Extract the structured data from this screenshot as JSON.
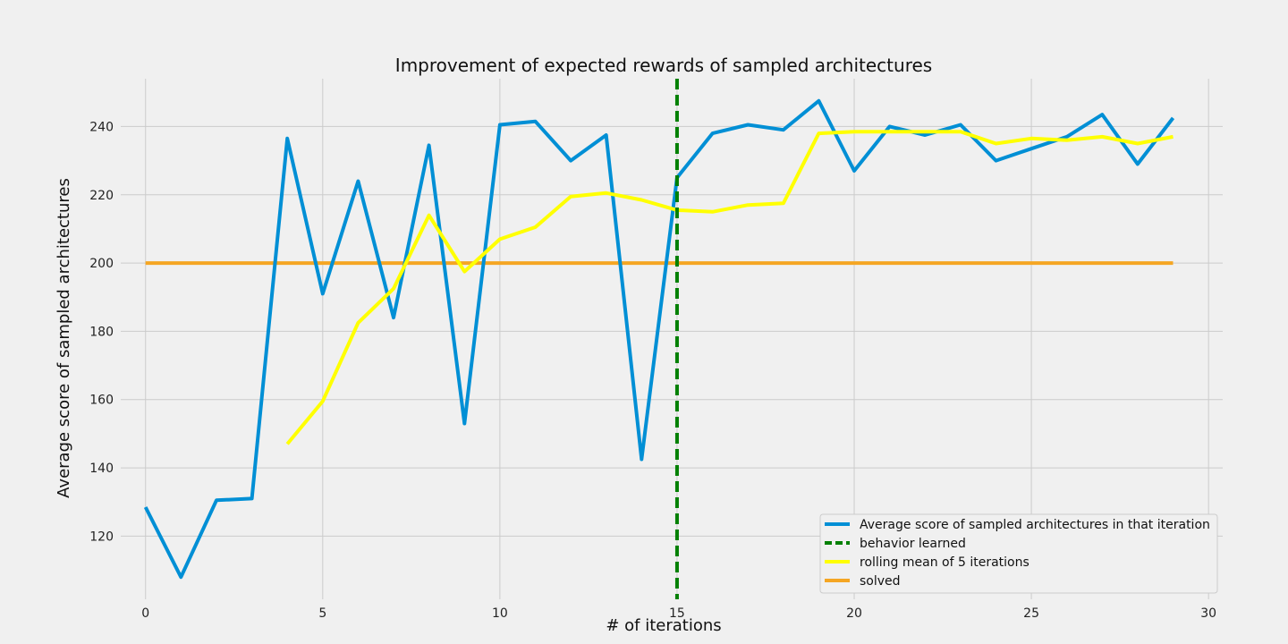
{
  "chart_data": {
    "type": "line",
    "title": "Improvement of expected rewards of sampled architectures",
    "xlabel": "# of iterations",
    "ylabel": "Average score of sampled architectures",
    "xlim": [
      -0.7,
      30.4
    ],
    "ylim": [
      101.5,
      254
    ],
    "xticks": [
      0,
      5,
      10,
      15,
      20,
      25,
      30
    ],
    "yticks": [
      120,
      140,
      160,
      180,
      200,
      220,
      240
    ],
    "grid": true,
    "legend_position": "lower-right",
    "series": [
      {
        "name": "Average score of sampled architectures in that iteration",
        "color": "#008fd5",
        "style": "solid",
        "x": [
          0,
          1,
          2,
          3,
          4,
          5,
          6,
          7,
          8,
          9,
          10,
          11,
          12,
          13,
          14,
          15,
          16,
          17,
          18,
          19,
          20,
          21,
          22,
          23,
          24,
          25,
          26,
          27,
          28,
          29
        ],
        "values": [
          128.5,
          108,
          130.5,
          131,
          236.5,
          191,
          224,
          184,
          234.5,
          153,
          240.5,
          241.5,
          230,
          237.5,
          142.5,
          225,
          238,
          240.5,
          239,
          247.5,
          227,
          240,
          237.5,
          240.5,
          230,
          233.5,
          237,
          243.5,
          229,
          242.5
        ]
      },
      {
        "name": "behavior learned",
        "color": "#008000",
        "style": "dashed",
        "vline_x": 15
      },
      {
        "name": "rolling mean of 5 iterations",
        "color": "#ffff00",
        "style": "solid",
        "x": [
          4,
          5,
          6,
          7,
          8,
          9,
          10,
          11,
          12,
          13,
          14,
          15,
          16,
          17,
          18,
          19,
          20,
          21,
          22,
          23,
          24,
          25,
          26,
          27,
          28,
          29
        ],
        "values": [
          147,
          159.5,
          182.5,
          192.5,
          214,
          197.5,
          207,
          210.5,
          219.5,
          220.5,
          218.5,
          215.5,
          215,
          217,
          217.5,
          238,
          238.5,
          238.5,
          238.5,
          238.5,
          235,
          236.5,
          236,
          237,
          235,
          237
        ]
      },
      {
        "name": "solved",
        "color": "#f5a623",
        "style": "solid",
        "x": [
          0,
          29
        ],
        "values": [
          200,
          200
        ]
      }
    ]
  }
}
